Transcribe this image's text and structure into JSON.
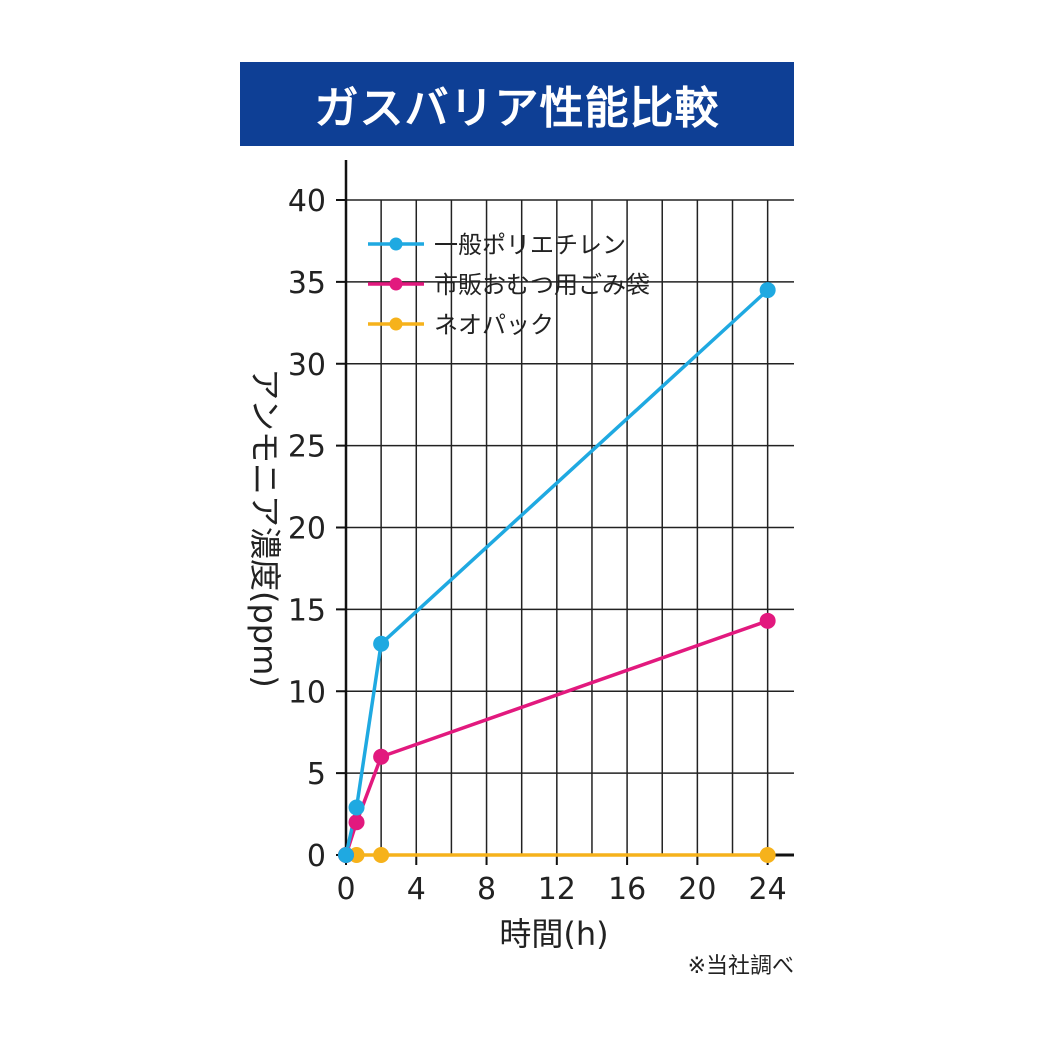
{
  "chart_data": {
    "type": "line",
    "title": "ガスバリア性能比較",
    "xlabel": "時間(h)",
    "ylabel": "アンモニア濃度(ppm)",
    "xlim": [
      0,
      25.5
    ],
    "ylim": [
      0,
      40
    ],
    "xticks": [
      0,
      4,
      8,
      12,
      16,
      20,
      24
    ],
    "yticks": [
      0,
      5,
      10,
      15,
      20,
      25,
      30,
      35,
      40
    ],
    "xgrid": [
      0,
      2,
      4,
      6,
      8,
      10,
      12,
      14,
      16,
      18,
      20,
      22,
      24
    ],
    "grid": true,
    "legend_position": "top-left",
    "series": [
      {
        "name": "一般ポリエチレン",
        "color": "#1fa9e1",
        "points": [
          [
            0,
            0
          ],
          [
            0.6,
            2.9
          ],
          [
            2,
            12.9
          ],
          [
            24,
            34.5
          ]
        ]
      },
      {
        "name": "市販おむつ用ごみ袋",
        "color": "#e2197e",
        "points": [
          [
            0,
            0
          ],
          [
            0.6,
            2.0
          ],
          [
            2,
            6.0
          ],
          [
            24,
            14.3
          ]
        ]
      },
      {
        "name": "ネオパック",
        "color": "#f6b21b",
        "points": [
          [
            0,
            0
          ],
          [
            0.6,
            0
          ],
          [
            2,
            0
          ],
          [
            24,
            0
          ]
        ]
      }
    ],
    "note": "※当社調べ"
  }
}
